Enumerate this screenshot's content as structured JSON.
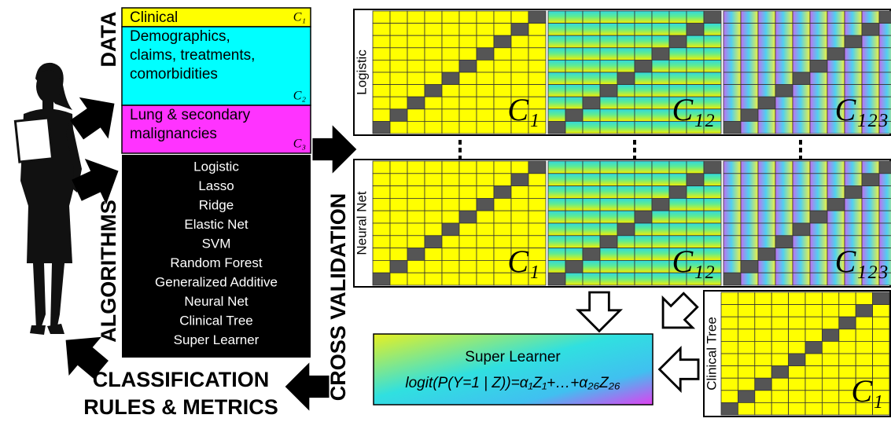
{
  "labels": {
    "data": "DATA",
    "algorithms": "ALGORITHMS",
    "cross_validation": "CROSS VALIDATION",
    "classification": [
      "CLASSIFICATION",
      "RULES & METRICS"
    ]
  },
  "data_sources": [
    {
      "text": [
        "Clinical"
      ],
      "tag": "C₁"
    },
    {
      "text": [
        "Demographics,",
        "claims, treatments,",
        "comorbidities"
      ],
      "tag": "C₂"
    },
    {
      "text": [
        "Lung & secondary",
        "malignancies"
      ],
      "tag": "C₃"
    }
  ],
  "algorithms": [
    "Logistic",
    "Lasso",
    "Ridge",
    "Elastic Net",
    "SVM",
    "Random Forest",
    "Generalized Additive",
    "Neural Net",
    "Clinical Tree",
    "Super Learner"
  ],
  "panels": [
    {
      "label": "Logistic",
      "grids": [
        "C₁",
        "C₁₂",
        "C₁₂₃"
      ]
    },
    {
      "label": "Neural Net",
      "grids": [
        "C₁",
        "C₁₂",
        "C₁₂₃"
      ]
    },
    {
      "label": "Clinical Tree",
      "grids": [
        "C₁"
      ]
    }
  ],
  "super_learner": {
    "title": "Super Learner",
    "formula": "logit(P(Y=1 | Z))=α₁Z₁+…+α₂₆Z₂₆"
  }
}
